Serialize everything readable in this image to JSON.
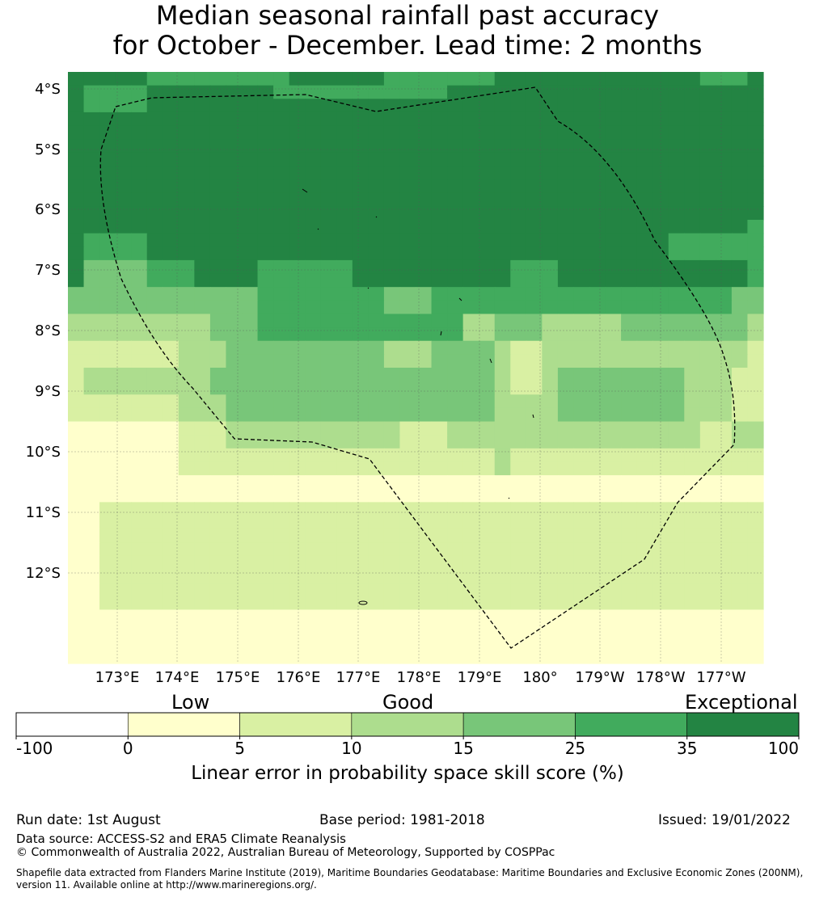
{
  "title_line1": "Median seasonal rainfall past accuracy",
  "title_line2": "for October - December. Lead time: 2 months",
  "map": {
    "lat_labels": [
      "4°S",
      "5°S",
      "6°S",
      "7°S",
      "8°S",
      "9°S",
      "10°S",
      "11°S",
      "12°S"
    ],
    "lon_labels": [
      "173°E",
      "174°E",
      "175°E",
      "176°E",
      "177°E",
      "178°E",
      "179°E",
      "180°",
      "179°W",
      "178°W",
      "177°W"
    ],
    "grid_rows": [
      "66666555555555666666555555566666666666665556",
      "65555666666665555555555566666666666666666666",
      "65555666666666666666666666666666666666666666",
      "66666666666666666666666666666666666666666666",
      "66666666666666666666666666666666666666666666",
      "66666666666666666666666666666666666666666666",
      "66666666666666666666666666666666666666666666",
      "66666666666666666666666666666666666666666666",
      "66666666666666666666666666666666666666666666",
      "66666666666666666666666666666666666666666666",
      "66666666666666666666666666666666666666666666",
      "66666666666666666666666666666666666666666665",
      "65555666666666666666666666666666666666555555",
      "65555666666666666666666666666666666666555555",
      "64444555666655555566666666665556666666666665",
      "64444555666655555566666666665556666666666665",
      "44444444444455555555444555555555555555555544",
      "44444444444455555555444555555555555555555544",
      "33333333344455555555555553344433333444444443",
      "33333333344455555555555553344433333444444443",
      "22222223334444444444333444432233333333333332",
      "22222223334444444444333444432233333333333332",
      "23333333344444444444444444432234444444433322",
      "23333333344444444444444444432234444444433322",
      "22222223334444444444444444433334444444433322",
      "22222223334444444444444444433334444444433322",
      "11111112223333333333322233333333333333332233",
      "11111112223333333333322233333333333333332233",
      "11111112222222222222222222232222222222222222",
      "11111112222222222222222222232222222222222222",
      "11111111111111111111111111111111111111111111",
      "11111111111111111111111111111111111111111111",
      "11222222222222222222222222222222222222222222",
      "11222222222222222222222222222222222222222222",
      "11222222222222222222222222222222222222222222",
      "11222222222222222222222222222222222222222222",
      "11222222222222222222222222222222222222222222",
      "11222222222222222222222222222222222222222222",
      "11222222222222222222222222222222222222222222",
      "11222222222222222222222222222222222222222222",
      "11111111111111111111111111111111111111111111",
      "11111111111111111111111111111111111111111111",
      "11111111111111111111111111111111111111111111",
      "11111111111111111111111111111111111111111111"
    ]
  },
  "legend": {
    "categories": [
      "Low",
      "Good",
      "Exceptional"
    ],
    "ticks": [
      "-100",
      "0",
      "5",
      "10",
      "15",
      "25",
      "35",
      "100"
    ],
    "colors": [
      "#ffffff",
      "#ffffcc",
      "#d9f0a3",
      "#addd8e",
      "#78c679",
      "#41ab5d",
      "#238443"
    ],
    "label": "Linear error in probability space skill score (%)"
  },
  "footer": {
    "run_date": "Run date: 1st August",
    "base_period": "Base period: 1981-2018",
    "issued": "Issued: 19/01/2022",
    "data_source": "Data source: ACCESS-S2 and ERA5 Climate Reanalysis",
    "copyright": "© Commonwealth of Australia 2022, Australian Bureau of Meteorology, Supported by COSPPac",
    "shapefile_line1": "Shapefile data extracted from Flanders Marine Institute (2019), Maritime Boundaries Geodatabase: Maritime Boundaries and Exclusive Economic Zones (200NM),",
    "shapefile_line2": "version 11. Available online at http://www.marineregions.org/."
  }
}
